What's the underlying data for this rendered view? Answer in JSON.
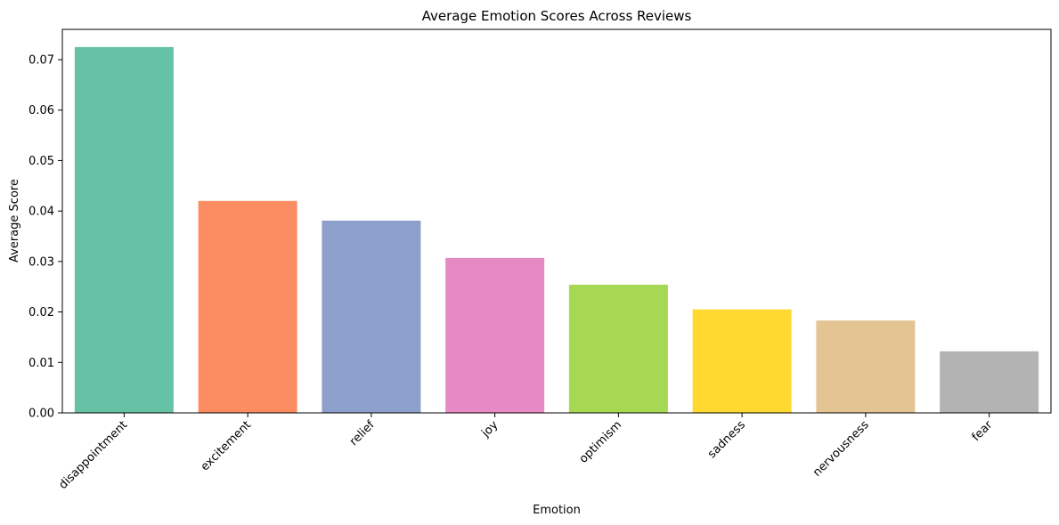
{
  "chart_data": {
    "type": "bar",
    "title": "Average Emotion Scores Across Reviews",
    "xlabel": "Emotion",
    "ylabel": "Average Score",
    "categories": [
      "disappointment",
      "excitement",
      "relief",
      "joy",
      "optimism",
      "sadness",
      "nervousness",
      "fear"
    ],
    "values": [
      0.0725,
      0.042,
      0.0381,
      0.0307,
      0.0254,
      0.0205,
      0.0183,
      0.0122
    ],
    "colors": [
      "#66c2a5",
      "#fc8d62",
      "#8da0cb",
      "#e78ac3",
      "#a6d854",
      "#ffd92f",
      "#e5c494",
      "#b3b3b3"
    ],
    "ylim": [
      0,
      0.076
    ],
    "yticks": [
      "0.00",
      "0.01",
      "0.02",
      "0.03",
      "0.04",
      "0.05",
      "0.06",
      "0.07"
    ],
    "grid": false,
    "legend": "none"
  }
}
